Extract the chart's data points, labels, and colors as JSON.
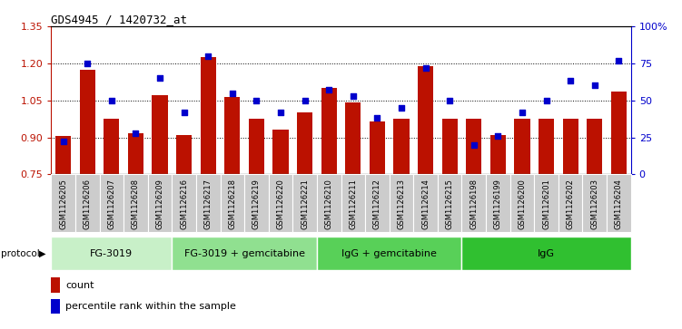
{
  "title": "GDS4945 / 1420732_at",
  "samples": [
    "GSM1126205",
    "GSM1126206",
    "GSM1126207",
    "GSM1126208",
    "GSM1126209",
    "GSM1126216",
    "GSM1126217",
    "GSM1126218",
    "GSM1126219",
    "GSM1126220",
    "GSM1126221",
    "GSM1126210",
    "GSM1126211",
    "GSM1126212",
    "GSM1126213",
    "GSM1126214",
    "GSM1126215",
    "GSM1126198",
    "GSM1126199",
    "GSM1126200",
    "GSM1126201",
    "GSM1126202",
    "GSM1126203",
    "GSM1126204"
  ],
  "counts": [
    0.905,
    1.175,
    0.975,
    0.915,
    1.07,
    0.91,
    1.225,
    1.065,
    0.975,
    0.93,
    1.0,
    1.1,
    1.04,
    0.965,
    0.975,
    1.19,
    0.975,
    0.975,
    0.91,
    0.975,
    0.975,
    0.975,
    0.975,
    1.085
  ],
  "percentiles": [
    22,
    75,
    50,
    28,
    65,
    42,
    80,
    55,
    50,
    42,
    50,
    57,
    53,
    38,
    45,
    72,
    50,
    20,
    26,
    42,
    50,
    63,
    60,
    77
  ],
  "groups": [
    {
      "label": "FG-3019",
      "start": 0,
      "end": 5,
      "color": "#c8f0c8"
    },
    {
      "label": "FG-3019 + gemcitabine",
      "start": 5,
      "end": 11,
      "color": "#90e090"
    },
    {
      "label": "IgG + gemcitabine",
      "start": 11,
      "end": 17,
      "color": "#58d058"
    },
    {
      "label": "IgG",
      "start": 17,
      "end": 24,
      "color": "#30c030"
    }
  ],
  "bar_color": "#bb1100",
  "dot_color": "#0000cc",
  "ylim_left": [
    0.75,
    1.35
  ],
  "ylim_right": [
    0,
    100
  ],
  "yticks_left": [
    0.75,
    0.9,
    1.05,
    1.2,
    1.35
  ],
  "yticks_right": [
    0,
    25,
    50,
    75,
    100
  ],
  "ytick_labels_right": [
    "0",
    "25",
    "50",
    "75",
    "100%"
  ],
  "grid_values": [
    0.9,
    1.05,
    1.2
  ],
  "plot_bg": "#ffffff",
  "tick_bg": "#cccccc",
  "protocol_label": "protocol"
}
